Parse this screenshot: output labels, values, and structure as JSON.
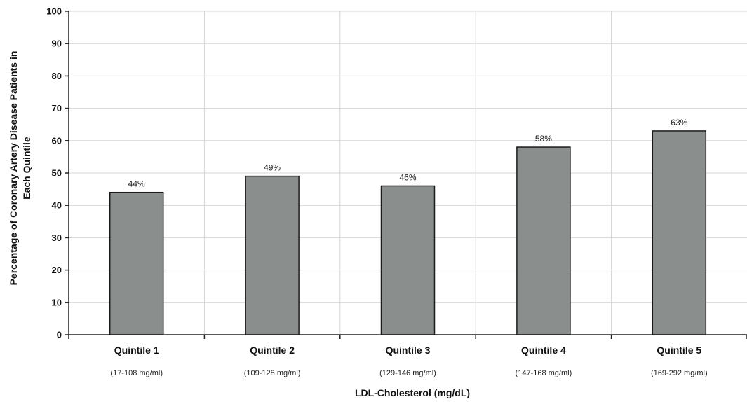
{
  "chart_data": {
    "type": "bar",
    "categories": [
      "Quintile 1",
      "Quintile 2",
      "Quintile 3",
      "Quintile 4",
      "Quintile 5"
    ],
    "category_ranges": [
      "(17-108 mg/ml)",
      "(109-128 mg/ml)",
      "(129-146 mg/ml)",
      "(147-168 mg/ml)",
      "(169-292 mg/ml)"
    ],
    "values": [
      44,
      49,
      46,
      58,
      63
    ],
    "data_labels": [
      "44%",
      "49%",
      "46%",
      "58%",
      "63%"
    ],
    "title": "",
    "xlabel": "LDL-Cholesterol  (mg/dL)",
    "ylabel_lines": [
      "Percentage of Coronary Artery Disease Patients in",
      "Each Quintile"
    ],
    "ylim": [
      0,
      100
    ],
    "yticks": [
      0,
      10,
      20,
      30,
      40,
      50,
      60,
      70,
      80,
      90,
      100
    ],
    "grid": true,
    "legend": "none",
    "colors": {
      "bar_fill": "#8a8f8e",
      "bar_stroke": "#1a1a1a",
      "grid": "#d4d4d4",
      "axis": "#222222"
    }
  }
}
